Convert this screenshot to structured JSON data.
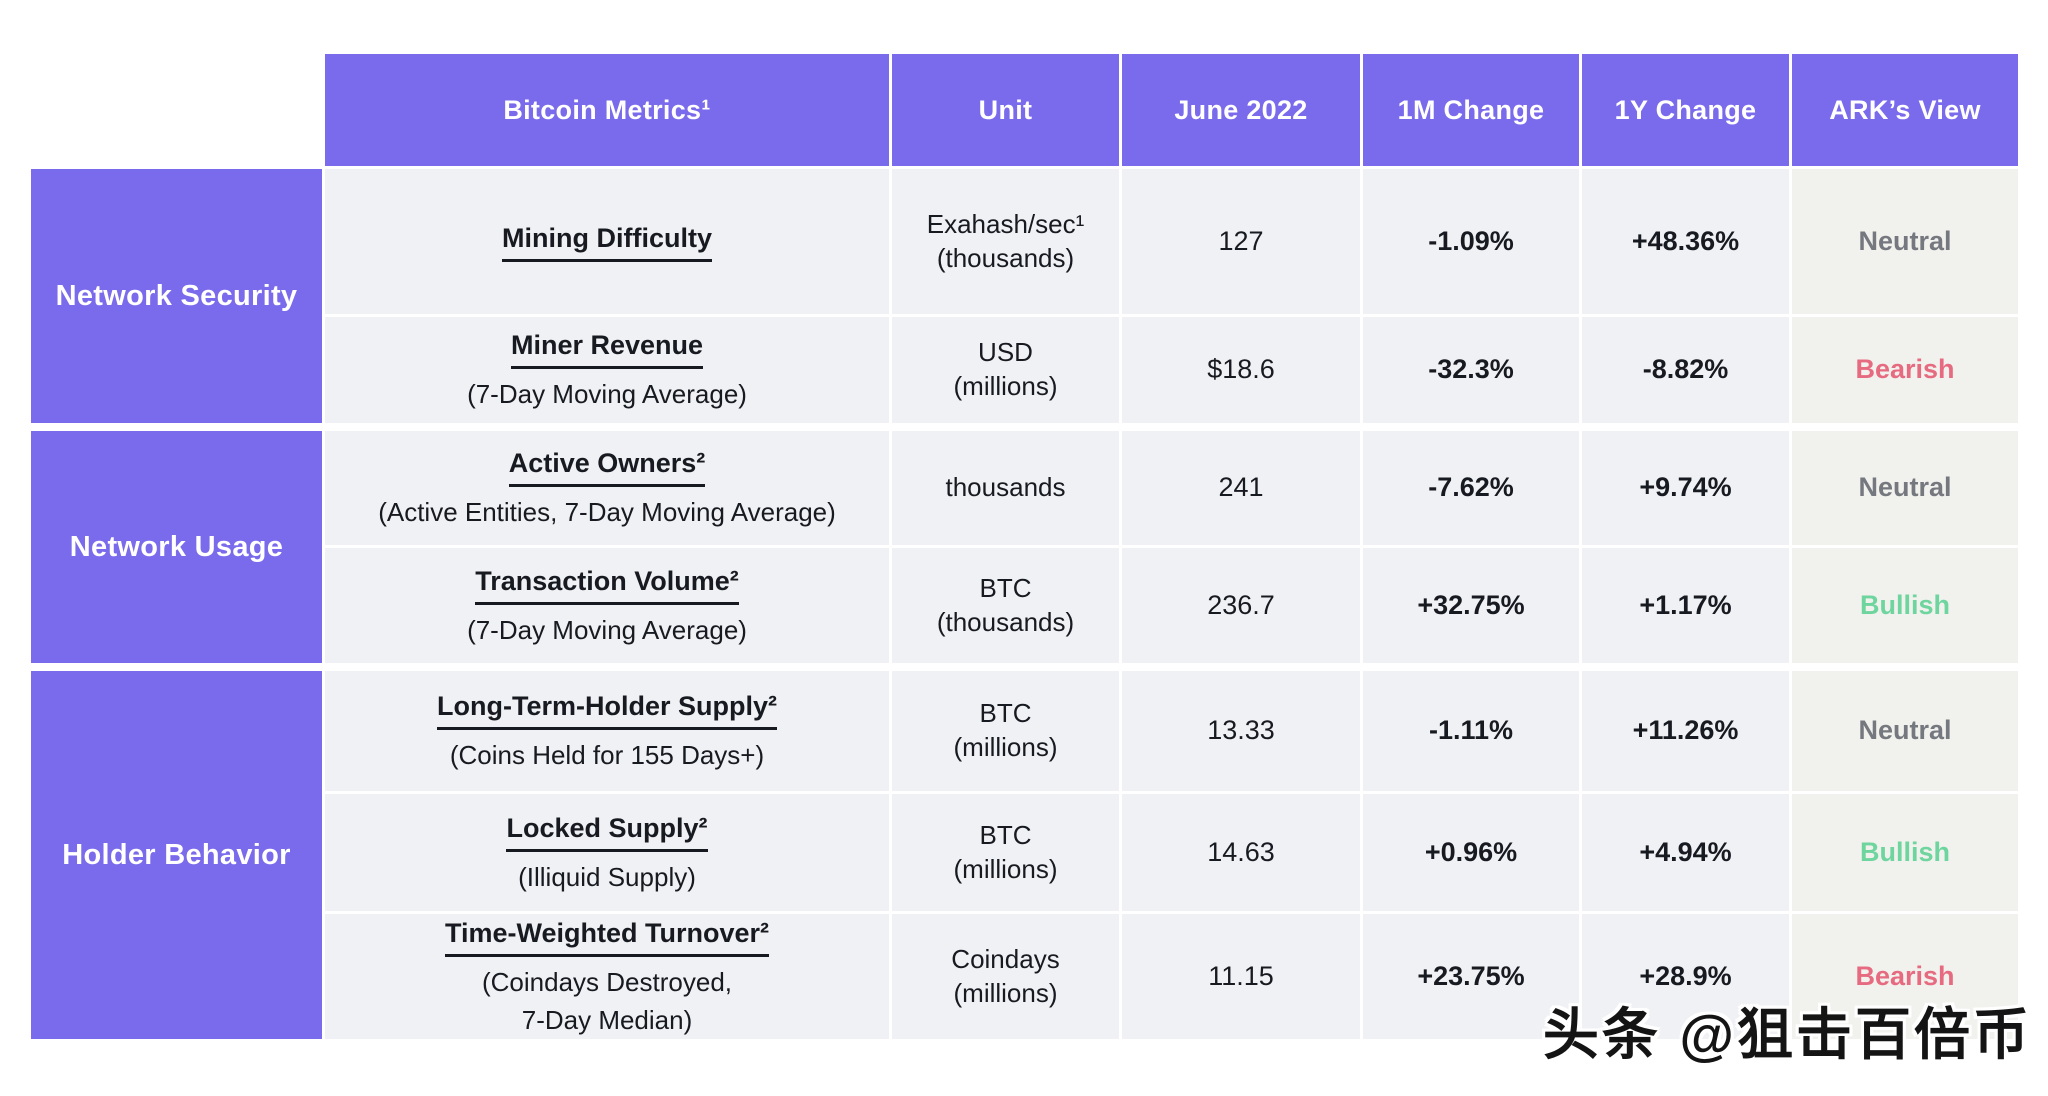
{
  "colors": {
    "purple": "#7a6aec",
    "cell_bg": "#f0f1f4",
    "view_bg": "#f1f1ee",
    "text_dark": "#171a21",
    "neutral": "#75787e",
    "bearish": "#e76b80",
    "bullish": "#6fd59e",
    "page_bg": "#ffffff"
  },
  "header": {
    "metrics": "Bitcoin Metrics¹",
    "unit": "Unit",
    "date": "June 2022",
    "m1": "1M Change",
    "y1": "1Y Change",
    "view": "ARK’s View"
  },
  "groups": [
    {
      "label": "Network Security"
    },
    {
      "label": "Network Usage"
    },
    {
      "label": "Holder Behavior"
    }
  ],
  "rows": [
    {
      "name": "Mining Difficulty",
      "sub1": "",
      "sub2": "",
      "unit1": "Exahash/sec¹",
      "unit2": "(thousands)",
      "value": "127",
      "m1": "-1.09%",
      "y1": "+48.36%",
      "view": "Neutral"
    },
    {
      "name": "Miner Revenue",
      "sub1": "(7-Day Moving Average)",
      "sub2": "",
      "unit1": "USD",
      "unit2": "(millions)",
      "value": "$18.6",
      "m1": "-32.3%",
      "y1": "-8.82%",
      "view": "Bearish"
    },
    {
      "name": "Active Owners²",
      "sub1": "(Active Entities, 7-Day Moving Average)",
      "sub2": "",
      "unit1": "thousands",
      "unit2": "",
      "value": "241",
      "m1": "-7.62%",
      "y1": "+9.74%",
      "view": "Neutral"
    },
    {
      "name": "Transaction Volume²",
      "sub1": "(7-Day Moving Average)",
      "sub2": "",
      "unit1": "BTC",
      "unit2": "(thousands)",
      "value": "236.7",
      "m1": "+32.75%",
      "y1": "+1.17%",
      "view": "Bullish"
    },
    {
      "name": "Long-Term-Holder Supply²",
      "sub1": "(Coins Held for 155 Days+)",
      "sub2": "",
      "unit1": "BTC",
      "unit2": "(millions)",
      "value": "13.33",
      "m1": "-1.11%",
      "y1": "+11.26%",
      "view": "Neutral"
    },
    {
      "name": "Locked Supply²",
      "sub1": "(Illiquid Supply)",
      "sub2": "",
      "unit1": "BTC",
      "unit2": "(millions)",
      "value": "14.63",
      "m1": "+0.96%",
      "y1": "+4.94%",
      "view": "Bullish"
    },
    {
      "name": "Time-Weighted Turnover²",
      "sub1": "(Coindays Destroyed,",
      "sub2": "7-Day Median)",
      "unit1": "Coindays",
      "unit2": "(millions)",
      "value": "11.15",
      "m1": "+23.75%",
      "y1": "+28.9%",
      "view": "Bearish"
    }
  ],
  "watermark": "头条 @狙击百倍币",
  "chart_data": {
    "type": "table",
    "title": "Bitcoin Metrics¹",
    "columns": [
      "Category",
      "Bitcoin Metrics¹",
      "Unit",
      "June 2022",
      "1M Change",
      "1Y Change",
      "ARK’s View"
    ],
    "rows": [
      [
        "Network Security",
        "Mining Difficulty",
        "Exahash/sec¹ (thousands)",
        "127",
        "-1.09%",
        "+48.36%",
        "Neutral"
      ],
      [
        "Network Security",
        "Miner Revenue (7-Day Moving Average)",
        "USD (millions)",
        "$18.6",
        "-32.3%",
        "-8.82%",
        "Bearish"
      ],
      [
        "Network Usage",
        "Active Owners² (Active Entities, 7-Day Moving Average)",
        "thousands",
        "241",
        "-7.62%",
        "+9.74%",
        "Neutral"
      ],
      [
        "Network Usage",
        "Transaction Volume² (7-Day Moving Average)",
        "BTC (thousands)",
        "236.7",
        "+32.75%",
        "+1.17%",
        "Bullish"
      ],
      [
        "Holder Behavior",
        "Long-Term-Holder Supply² (Coins Held for 155 Days+)",
        "BTC (millions)",
        "13.33",
        "-1.11%",
        "+11.26%",
        "Neutral"
      ],
      [
        "Holder Behavior",
        "Locked Supply² (Illiquid Supply)",
        "BTC (millions)",
        "14.63",
        "+0.96%",
        "+4.94%",
        "Bullish"
      ],
      [
        "Holder Behavior",
        "Time-Weighted Turnover² (Coindays Destroyed, 7-Day Median)",
        "Coindays (millions)",
        "11.15",
        "+23.75%",
        "+28.9%",
        "Bearish"
      ]
    ],
    "sentiment_legend": {
      "Neutral": "gray",
      "Bearish": "pink-red",
      "Bullish": "green"
    }
  }
}
